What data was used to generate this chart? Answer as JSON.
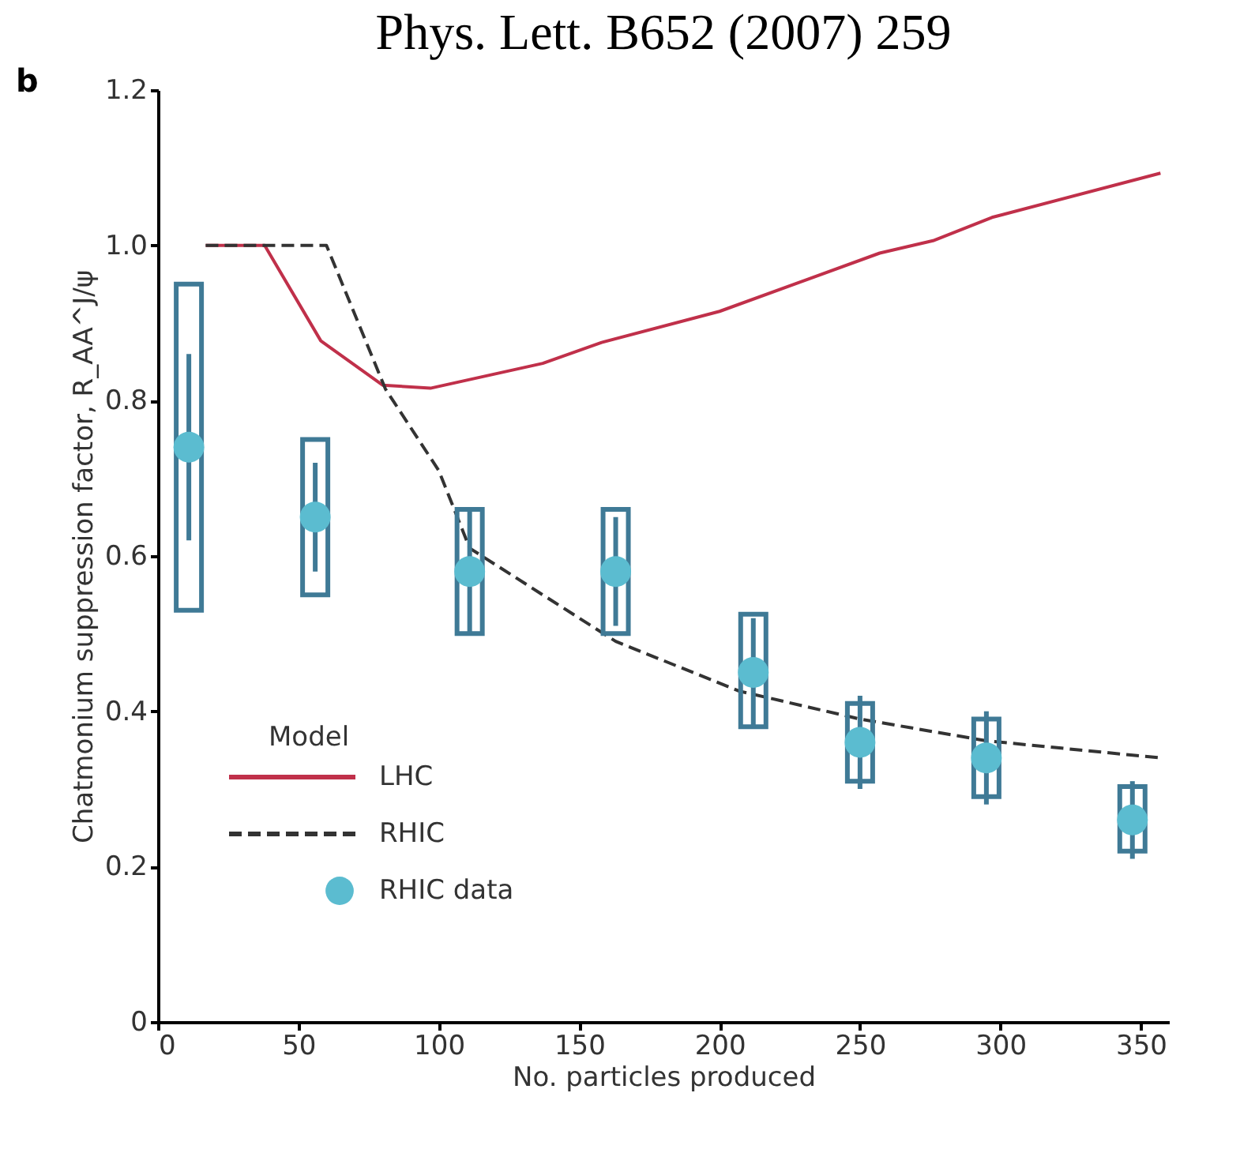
{
  "chart_data": {
    "type": "scatter",
    "title": "Phys. Lett. B652 (2007) 259",
    "xlabel": "No. particles produced",
    "ylabel": "Chatmonium suppression factor, R_AA^J/ψ",
    "legend_title": "Model",
    "legend": "bottom left",
    "grid": false,
    "annotations": [
      "b"
    ],
    "xlim": [
      0,
      360
    ],
    "xticks": [
      0,
      50,
      100,
      150,
      200,
      250,
      300,
      350
    ],
    "ylim": [
      0,
      1.2
    ],
    "yticks": [
      {
        "value": 0,
        "label": "0"
      },
      0.2,
      0.4,
      0.6,
      0.8,
      {
        "value": 1,
        "label": "1.0"
      },
      1.2
    ],
    "series": [
      {
        "name": "LHC",
        "type": "line",
        "color": "#c0304a",
        "line_style": "solid",
        "marker": "none",
        "x": [
          17,
          38,
          58,
          80,
          97,
          137,
          158,
          200,
          257,
          276,
          297,
          357
        ],
        "values": [
          1.0,
          1.0,
          0.877,
          0.82,
          0.816,
          0.848,
          0.875,
          0.915,
          0.99,
          1.006,
          1.036,
          1.093
        ]
      },
      {
        "name": "RHIC",
        "type": "line",
        "color": "#333333",
        "line_style": "dashed",
        "marker": "none",
        "x": [
          17,
          60,
          81,
          100,
          111,
          163,
          207,
          250,
          295,
          357
        ],
        "values": [
          1.0,
          1.0,
          0.815,
          0.71,
          0.61,
          0.49,
          0.426,
          0.39,
          0.362,
          0.34
        ]
      },
      {
        "type": "bar",
        "color": "#3f7a96",
        "x": [
          11,
          56,
          111,
          163,
          212,
          250,
          295,
          347
        ],
        "base": [
          0.53,
          0.55,
          0.5,
          0.5,
          0.38,
          0.31,
          0.29,
          0.22
        ],
        "values": [
          0.42,
          0.2,
          0.16,
          0.16,
          0.145,
          0.1,
          0.1,
          0.083
        ]
      },
      {
        "name": "RHIC data",
        "color": "#5bbcd0",
        "marker": "circle",
        "x": [
          11,
          56,
          111,
          163,
          212,
          250,
          295,
          347
        ],
        "values": [
          0.74,
          0.65,
          0.58,
          0.58,
          0.45,
          0.36,
          0.34,
          0.26
        ],
        "errors": [
          [
            0.62,
            0.86
          ],
          [
            0.58,
            0.72
          ],
          [
            0.5,
            0.66
          ],
          [
            0.51,
            0.65
          ],
          [
            0.38,
            0.52
          ],
          [
            0.3,
            0.42
          ],
          [
            0.28,
            0.4
          ],
          [
            0.21,
            0.31
          ]
        ]
      }
    ]
  }
}
